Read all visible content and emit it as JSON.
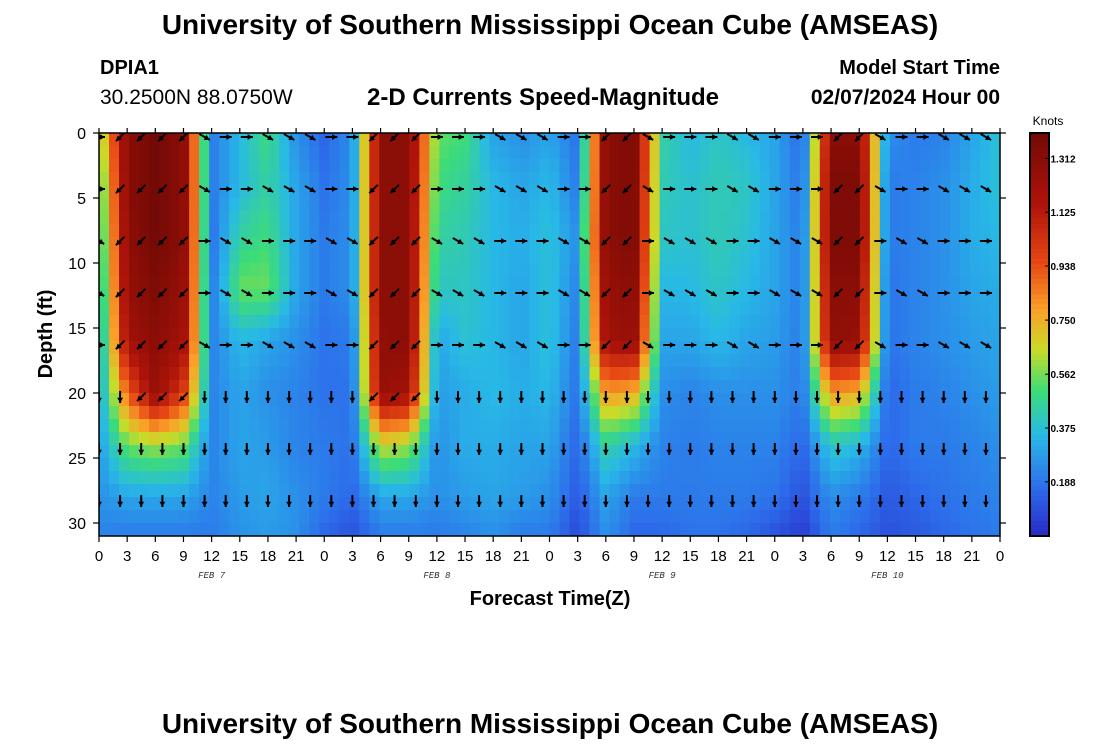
{
  "header": {
    "title": "University of Southern Mississippi Ocean Cube (AMSEAS)",
    "station_id": "DPIA1",
    "station_coords": "30.2500N  88.0750W",
    "plot_title": "2-D Currents Speed-Magnitude",
    "model_start_label": "Model Start Time",
    "model_start_value": "02/07/2024 Hour 00"
  },
  "footer": {
    "title": "University of Southern Mississippi Ocean Cube (AMSEAS)"
  },
  "chart_data": {
    "type": "heatmap",
    "title": "2-D Currents Speed-Magnitude",
    "xlabel": "Forecast Time(Z)",
    "ylabel": "Depth (ft)",
    "x_range_hours": [
      0,
      96
    ],
    "y_range_ft": [
      0,
      31
    ],
    "x_ticks": [
      "0",
      "3",
      "6",
      "9",
      "12",
      "15",
      "18",
      "21",
      "0",
      "3",
      "6",
      "9",
      "12",
      "15",
      "18",
      "21",
      "0",
      "3",
      "6",
      "9",
      "12",
      "15",
      "18",
      "21",
      "0",
      "3",
      "6",
      "9",
      "12",
      "15",
      "18",
      "21",
      "0"
    ],
    "y_ticks": [
      0,
      5,
      10,
      15,
      20,
      25,
      30
    ],
    "date_labels": [
      {
        "label": "FEB 7",
        "hour": 12
      },
      {
        "label": "FEB 8",
        "hour": 36
      },
      {
        "label": "FEB 9",
        "hour": 60
      },
      {
        "label": "FEB 10",
        "hour": 84
      }
    ],
    "colorbar": {
      "label": "Knots",
      "range": [
        0.0,
        1.4
      ],
      "ticks": [
        "1.312",
        "1.125",
        "0.938",
        "0.750",
        "0.562",
        "0.375",
        "0.188"
      ],
      "tick_values": [
        1.312,
        1.125,
        0.938,
        0.75,
        0.562,
        0.375,
        0.188
      ]
    },
    "time_hours": [
      0,
      3,
      6,
      9,
      12,
      15,
      18,
      21,
      24,
      27,
      30,
      33,
      36,
      39,
      42,
      45,
      48,
      51,
      54,
      57,
      60,
      63,
      66,
      69,
      72,
      75,
      78,
      81,
      84,
      87,
      90,
      93,
      96
    ],
    "depth_ft": [
      0,
      4,
      8,
      12,
      16,
      20,
      24,
      28,
      31
    ],
    "speed_knots": [
      [
        0.55,
        0.45,
        0.4,
        0.35,
        0.3,
        0.3,
        0.28,
        0.25,
        0.22
      ],
      [
        1.3,
        1.3,
        1.28,
        1.25,
        1.2,
        0.9,
        0.55,
        0.3,
        0.2
      ],
      [
        1.4,
        1.4,
        1.4,
        1.35,
        1.3,
        1.25,
        0.6,
        0.3,
        0.2
      ],
      [
        1.3,
        1.3,
        1.3,
        1.25,
        1.2,
        1.0,
        0.55,
        0.3,
        0.2
      ],
      [
        0.2,
        0.2,
        0.18,
        0.2,
        0.22,
        0.22,
        0.22,
        0.22,
        0.2
      ],
      [
        0.35,
        0.35,
        0.45,
        0.55,
        0.35,
        0.3,
        0.3,
        0.28,
        0.25
      ],
      [
        0.5,
        0.45,
        0.5,
        0.55,
        0.3,
        0.25,
        0.28,
        0.3,
        0.28
      ],
      [
        0.25,
        0.3,
        0.3,
        0.3,
        0.25,
        0.22,
        0.22,
        0.25,
        0.25
      ],
      [
        0.15,
        0.18,
        0.2,
        0.2,
        0.18,
        0.18,
        0.2,
        0.2,
        0.15
      ],
      [
        0.25,
        0.25,
        0.25,
        0.25,
        0.2,
        0.18,
        0.18,
        0.15,
        0.1
      ],
      [
        1.3,
        1.3,
        1.3,
        1.3,
        1.28,
        1.25,
        0.65,
        0.3,
        0.2
      ],
      [
        1.3,
        1.3,
        1.3,
        1.3,
        1.3,
        1.2,
        0.6,
        0.3,
        0.2
      ],
      [
        0.55,
        0.5,
        0.45,
        0.4,
        0.3,
        0.28,
        0.25,
        0.25,
        0.2
      ],
      [
        0.5,
        0.45,
        0.42,
        0.4,
        0.38,
        0.32,
        0.32,
        0.28,
        0.22
      ],
      [
        0.3,
        0.35,
        0.35,
        0.35,
        0.35,
        0.35,
        0.32,
        0.3,
        0.25
      ],
      [
        0.25,
        0.3,
        0.32,
        0.3,
        0.3,
        0.32,
        0.3,
        0.28,
        0.2
      ],
      [
        0.3,
        0.35,
        0.38,
        0.38,
        0.38,
        0.35,
        0.3,
        0.25,
        0.2
      ],
      [
        0.18,
        0.2,
        0.25,
        0.22,
        0.2,
        0.18,
        0.15,
        0.12,
        0.08
      ],
      [
        1.3,
        1.3,
        1.3,
        1.25,
        1.2,
        0.8,
        0.45,
        0.3,
        0.25
      ],
      [
        1.35,
        1.35,
        1.35,
        1.3,
        1.25,
        0.75,
        0.35,
        0.2,
        0.15
      ],
      [
        0.45,
        0.42,
        0.4,
        0.35,
        0.3,
        0.25,
        0.22,
        0.2,
        0.15
      ],
      [
        0.35,
        0.38,
        0.38,
        0.35,
        0.3,
        0.22,
        0.2,
        0.2,
        0.18
      ],
      [
        0.4,
        0.42,
        0.42,
        0.4,
        0.35,
        0.25,
        0.22,
        0.2,
        0.18
      ],
      [
        0.35,
        0.4,
        0.38,
        0.35,
        0.3,
        0.25,
        0.22,
        0.2,
        0.15
      ],
      [
        0.3,
        0.3,
        0.3,
        0.3,
        0.28,
        0.25,
        0.22,
        0.18,
        0.1
      ],
      [
        0.15,
        0.18,
        0.2,
        0.2,
        0.2,
        0.2,
        0.15,
        0.1,
        0.05
      ],
      [
        1.3,
        1.35,
        1.35,
        1.3,
        1.28,
        0.8,
        0.4,
        0.25,
        0.2
      ],
      [
        1.3,
        1.35,
        1.35,
        1.3,
        1.25,
        0.75,
        0.35,
        0.2,
        0.15
      ],
      [
        0.25,
        0.2,
        0.2,
        0.18,
        0.18,
        0.15,
        0.15,
        0.12,
        0.1
      ],
      [
        0.2,
        0.22,
        0.22,
        0.22,
        0.22,
        0.2,
        0.2,
        0.15,
        0.12
      ],
      [
        0.22,
        0.25,
        0.25,
        0.25,
        0.25,
        0.22,
        0.2,
        0.18,
        0.15
      ],
      [
        0.3,
        0.32,
        0.32,
        0.3,
        0.28,
        0.25,
        0.22,
        0.2,
        0.18
      ],
      [
        0.38,
        0.38,
        0.35,
        0.32,
        0.3,
        0.28,
        0.25,
        0.22,
        0.2
      ]
    ]
  }
}
